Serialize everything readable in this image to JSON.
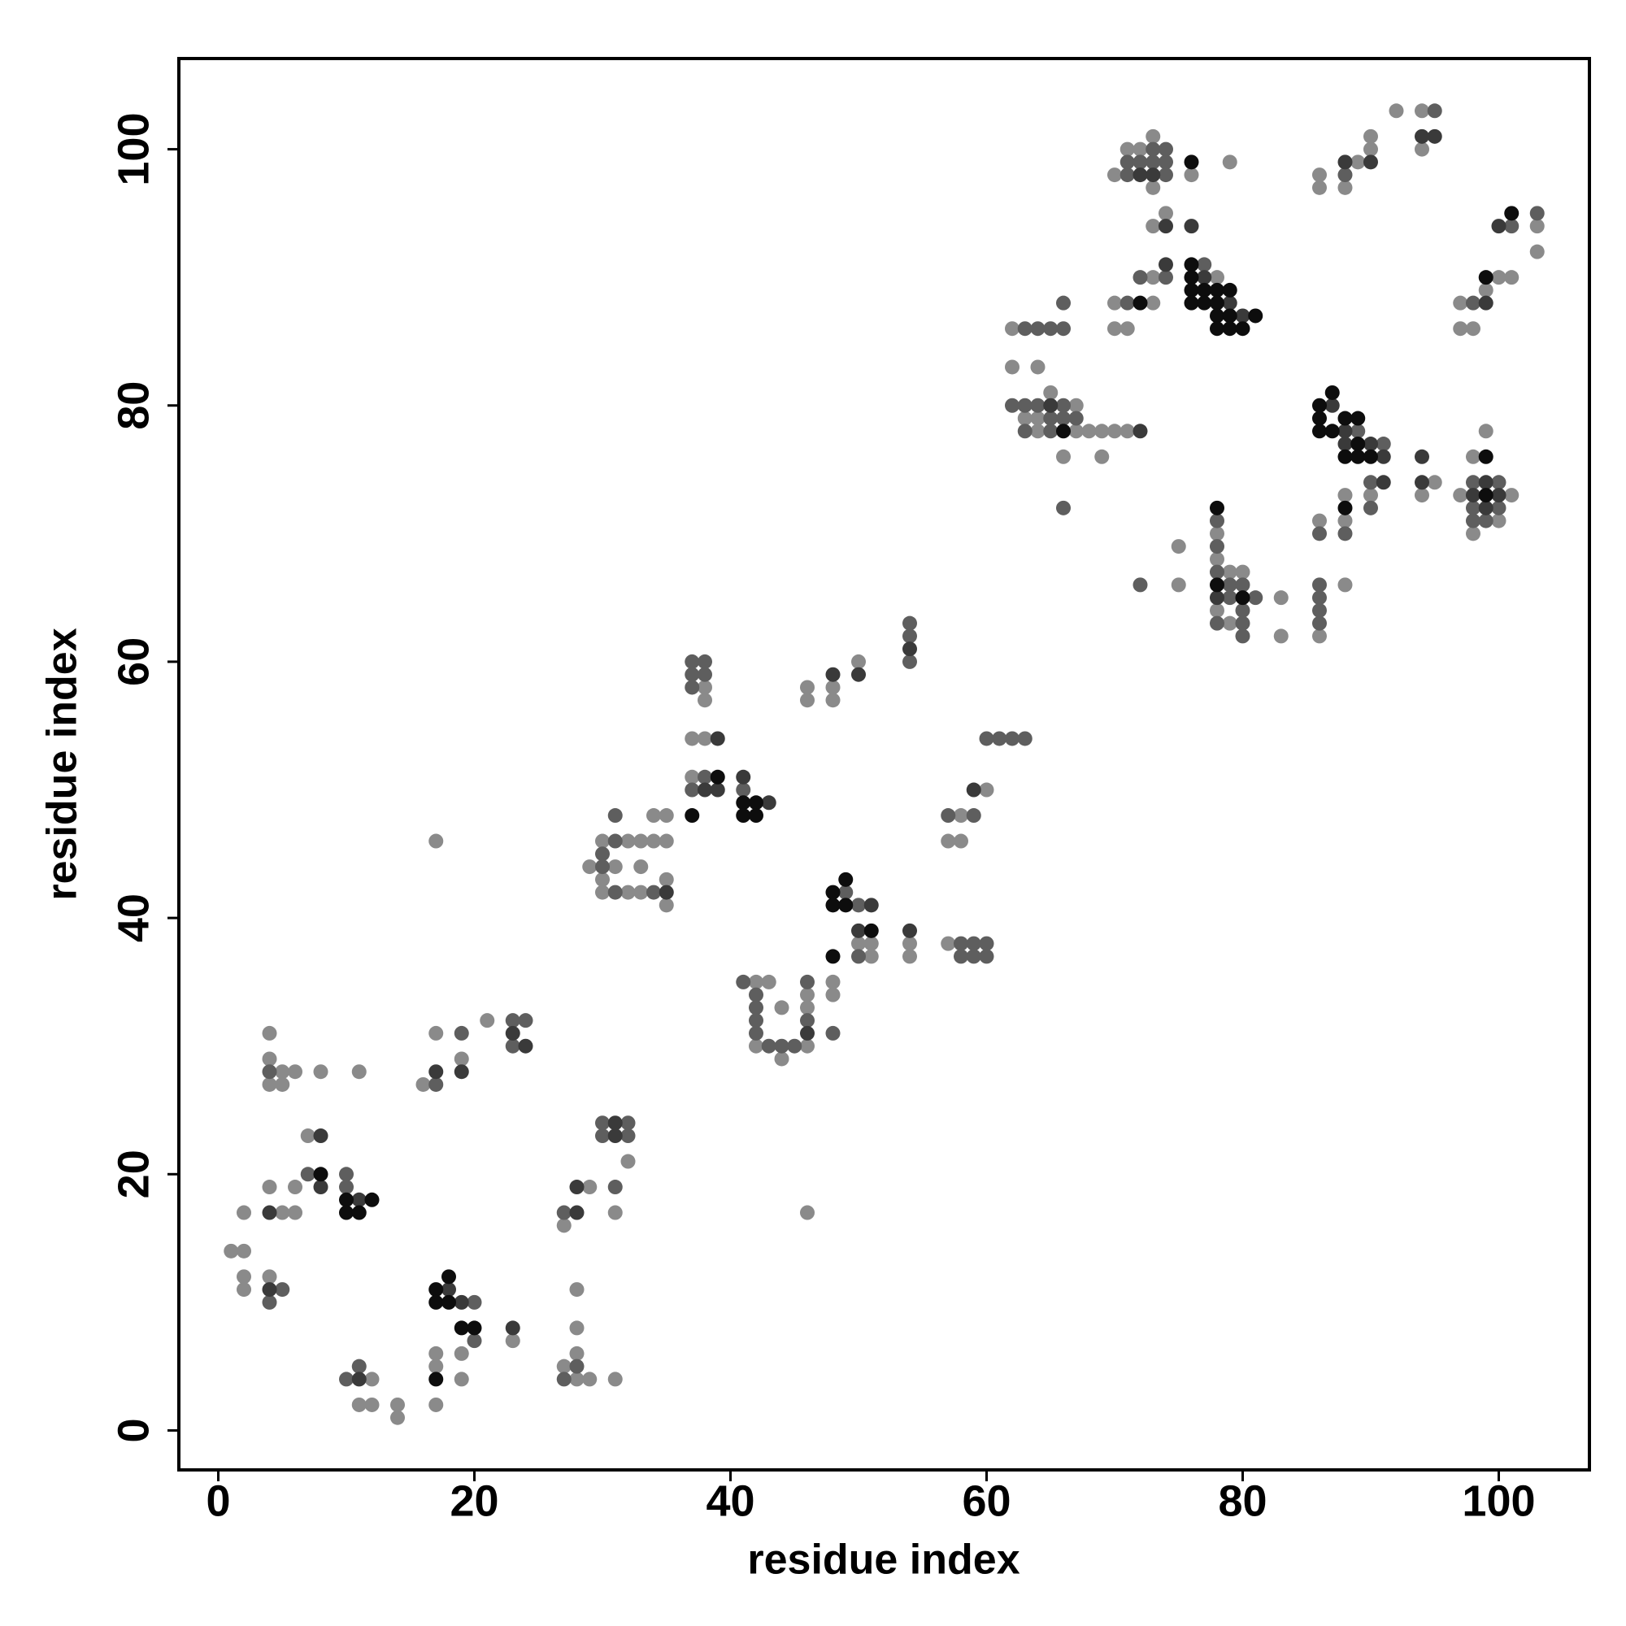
{
  "chart_data": {
    "type": "scatter",
    "xlabel": "residue index",
    "ylabel": "residue index",
    "xlim": [
      -3.08,
      107.08
    ],
    "ylim": [
      -3.08,
      107.08
    ],
    "xticks": [
      0,
      20,
      40,
      60,
      80,
      100
    ],
    "yticks": [
      0,
      20,
      40,
      60,
      80,
      100
    ],
    "series": [
      {
        "color": "#8a8a8a",
        "x": [
          1,
          2,
          2,
          4,
          2,
          2,
          5,
          6,
          4,
          6,
          7,
          4,
          4,
          4,
          5,
          5,
          6,
          8,
          11,
          12,
          11,
          12,
          14,
          14,
          17,
          17,
          17,
          19,
          19,
          23,
          16,
          17,
          19,
          21,
          27,
          29,
          28,
          28,
          28,
          27,
          28,
          29,
          31,
          32,
          31,
          17,
          46,
          29,
          31,
          30,
          32,
          33,
          34,
          35,
          34,
          35,
          33,
          30,
          30,
          32,
          33,
          35,
          35,
          38,
          38,
          37,
          38,
          37,
          42,
          43,
          42,
          44,
          44,
          46,
          46,
          46,
          48,
          48,
          46,
          46,
          48,
          48,
          50,
          50,
          51,
          51,
          54,
          54,
          58,
          57,
          58,
          60,
          57,
          62,
          62,
          64,
          67,
          63,
          64,
          65,
          64,
          67,
          68,
          69,
          70,
          71,
          66,
          69,
          71,
          72,
          73,
          70,
          73,
          76,
          79,
          73,
          74,
          73,
          70,
          73,
          70,
          71,
          78,
          75,
          75,
          78,
          78,
          79,
          80,
          78,
          79,
          83,
          83,
          86,
          86,
          88,
          88,
          88,
          90,
          94,
          95,
          97,
          98,
          98,
          99,
          100,
          101,
          97,
          97,
          98,
          99,
          100,
          101,
          103,
          103,
          86,
          86,
          88,
          89,
          90,
          90,
          92,
          94,
          94
        ],
        "values": [
          14,
          14,
          17,
          12,
          12,
          11,
          17,
          17,
          19,
          19,
          23,
          31,
          29,
          27,
          28,
          27,
          28,
          28,
          28,
          4,
          2,
          2,
          2,
          1,
          2,
          5,
          6,
          6,
          4,
          7,
          27,
          31,
          29,
          32,
          16,
          19,
          11,
          8,
          6,
          5,
          4,
          4,
          4,
          21,
          17,
          46,
          17,
          44,
          44,
          46,
          46,
          46,
          46,
          46,
          48,
          48,
          44,
          43,
          42,
          42,
          42,
          43,
          41,
          58,
          57,
          54,
          54,
          51,
          35,
          35,
          30,
          29,
          33,
          30,
          34,
          33,
          35,
          34,
          58,
          57,
          58,
          57,
          60,
          38,
          38,
          37,
          38,
          37,
          48,
          46,
          46,
          50,
          38,
          86,
          83,
          83,
          80,
          79,
          79,
          81,
          78,
          78,
          78,
          78,
          78,
          78,
          76,
          76,
          100,
          100,
          101,
          98,
          97,
          98,
          99,
          94,
          95,
          90,
          88,
          88,
          86,
          86,
          90,
          69,
          66,
          70,
          68,
          67,
          67,
          64,
          63,
          65,
          62,
          62,
          71,
          66,
          73,
          71,
          73,
          73,
          74,
          73,
          76,
          70,
          78,
          71,
          73,
          88,
          86,
          86,
          89,
          90,
          90,
          94,
          92,
          98,
          97,
          97,
          99,
          100,
          101,
          103,
          103,
          100
        ]
      },
      {
        "color": "#5e5e5e",
        "x": [
          4,
          5,
          7,
          4,
          10,
          10,
          10,
          11,
          20,
          20,
          17,
          19,
          23,
          24,
          23,
          27,
          27,
          28,
          30,
          32,
          30,
          32,
          31,
          30,
          30,
          31,
          31,
          31,
          34,
          37,
          38,
          37,
          38,
          37,
          38,
          37,
          41,
          41,
          42,
          42,
          42,
          42,
          43,
          44,
          45,
          46,
          46,
          48,
          49,
          50,
          50,
          54,
          54,
          54,
          57,
          59,
          58,
          59,
          60,
          58,
          59,
          60,
          60,
          61,
          62,
          63,
          63,
          64,
          65,
          66,
          66,
          62,
          63,
          64,
          66,
          65,
          66,
          67,
          63,
          65,
          66,
          71,
          72,
          73,
          74,
          71,
          74,
          73,
          74,
          72,
          74,
          71,
          77,
          78,
          78,
          78,
          79,
          80,
          79,
          81,
          80,
          78,
          80,
          80,
          72,
          86,
          86,
          86,
          86,
          86,
          88,
          89,
          91,
          90,
          90,
          98,
          98,
          98,
          100,
          100,
          99,
          98,
          101,
          103,
          88,
          95
        ],
        "values": [
          10,
          11,
          20,
          28,
          20,
          19,
          4,
          5,
          10,
          7,
          27,
          31,
          32,
          32,
          30,
          17,
          4,
          5,
          24,
          24,
          23,
          23,
          19,
          44,
          45,
          46,
          48,
          42,
          42,
          60,
          60,
          59,
          59,
          58,
          51,
          50,
          50,
          35,
          34,
          33,
          32,
          31,
          30,
          30,
          30,
          35,
          32,
          31,
          42,
          41,
          37,
          63,
          62,
          60,
          48,
          48,
          38,
          38,
          38,
          37,
          37,
          37,
          54,
          54,
          54,
          54,
          86,
          86,
          86,
          86,
          88,
          80,
          80,
          80,
          80,
          79,
          79,
          79,
          78,
          78,
          72,
          99,
          99,
          99,
          99,
          98,
          98,
          100,
          100,
          90,
          90,
          88,
          91,
          71,
          69,
          67,
          66,
          66,
          65,
          65,
          64,
          63,
          62,
          63,
          66,
          66,
          65,
          64,
          63,
          70,
          70,
          78,
          77,
          74,
          72,
          74,
          72,
          71,
          74,
          72,
          71,
          88,
          94,
          95,
          98,
          103
        ]
      },
      {
        "color": "#3a3a3a",
        "x": [
          4,
          4,
          8,
          8,
          11,
          11,
          18,
          19,
          23,
          17,
          19,
          23,
          24,
          28,
          28,
          31,
          31,
          35,
          39,
          38,
          39,
          41,
          43,
          46,
          48,
          50,
          51,
          50,
          54,
          54,
          59,
          65,
          72,
          72,
          73,
          74,
          76,
          74,
          77,
          79,
          80,
          78,
          87,
          88,
          88,
          90,
          91,
          91,
          94,
          94,
          98,
          99,
          99,
          100,
          99,
          100,
          88,
          90,
          94,
          95
        ],
        "values": [
          11,
          17,
          19,
          23,
          18,
          4,
          11,
          10,
          8,
          28,
          28,
          31,
          30,
          17,
          19,
          24,
          23,
          42,
          54,
          50,
          50,
          51,
          49,
          31,
          59,
          59,
          41,
          39,
          61,
          39,
          50,
          80,
          78,
          98,
          98,
          94,
          94,
          91,
          90,
          88,
          87,
          65,
          80,
          78,
          77,
          77,
          76,
          74,
          76,
          74,
          73,
          74,
          72,
          73,
          88,
          94,
          99,
          99,
          101,
          101
        ]
      },
      {
        "color": "#0d0d0d",
        "x": [
          8,
          10,
          10,
          11,
          12,
          17,
          17,
          17,
          18,
          18,
          19,
          20,
          39,
          37,
          41,
          42,
          41,
          42,
          48,
          49,
          48,
          49,
          48,
          51,
          66,
          76,
          72,
          76,
          76,
          76,
          77,
          76,
          77,
          78,
          78,
          78,
          79,
          79,
          78,
          79,
          80,
          81,
          78,
          78,
          80,
          88,
          86,
          87,
          86,
          86,
          87,
          88,
          89,
          88,
          89,
          89,
          90,
          99,
          99,
          99,
          101
        ],
        "values": [
          20,
          18,
          17,
          17,
          18,
          4,
          11,
          10,
          12,
          10,
          8,
          8,
          51,
          48,
          49,
          49,
          48,
          48,
          42,
          43,
          41,
          41,
          37,
          39,
          78,
          99,
          88,
          91,
          90,
          89,
          89,
          88,
          88,
          89,
          88,
          87,
          89,
          87,
          86,
          86,
          86,
          87,
          72,
          66,
          65,
          72,
          80,
          81,
          79,
          78,
          78,
          79,
          79,
          76,
          77,
          76,
          76,
          76,
          73,
          90,
          95
        ]
      }
    ]
  }
}
